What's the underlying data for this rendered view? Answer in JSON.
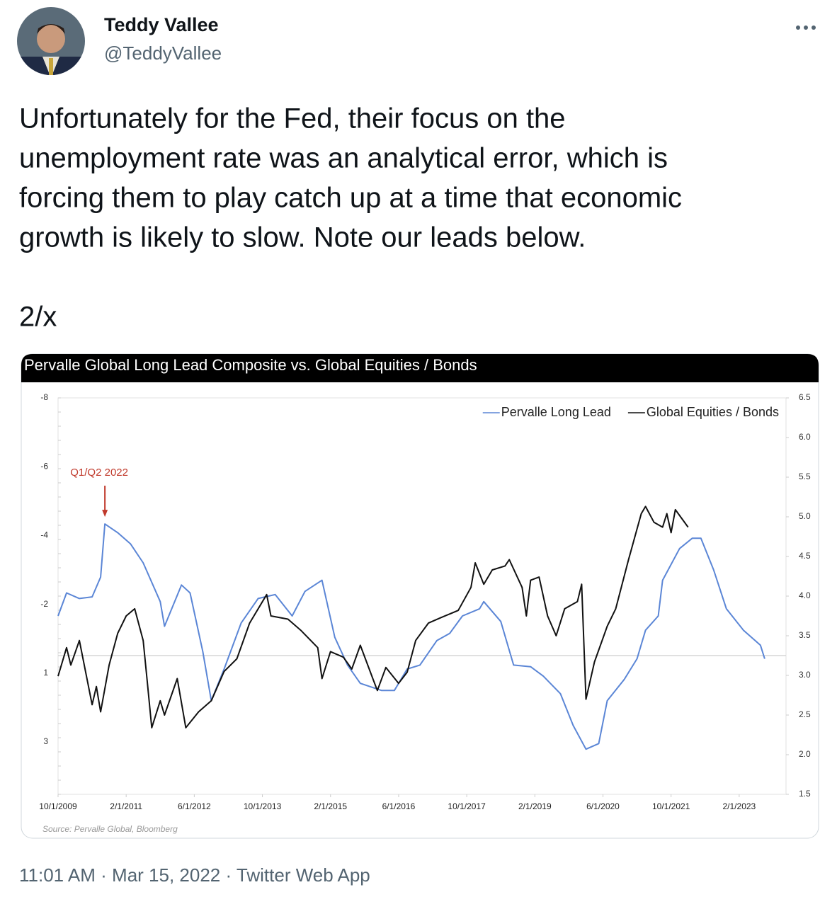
{
  "tweet": {
    "name": "Teddy Vallee",
    "handle": "@TeddyVallee",
    "text_lines": [
      "Unfortunately for the Fed, their focus on the",
      "unemployment rate was an analytical error, which is",
      "forcing them to play catch up at a time that economic",
      "growth is likely to slow. Note our leads below."
    ],
    "thread_marker": "2/x",
    "time": "11:01 AM",
    "date": "Mar 15, 2022",
    "source": "Twitter Web App"
  },
  "chart_data": {
    "type": "line",
    "title": "Pervalle Global Long Lead Composite vs. Global Equities / Bonds",
    "source_note": "Source: Pervalle Global, Bloomberg",
    "annotation": "Q1/Q2 2022",
    "legend": "upper right",
    "xlim": [
      "10/1/2009",
      "1/1/2024"
    ],
    "xticks": [
      "10/1/2009",
      "2/1/2011",
      "6/1/2012",
      "10/1/2013",
      "2/1/2015",
      "6/1/2016",
      "10/1/2017",
      "2/1/2019",
      "6/1/2020",
      "10/1/2021",
      "2/1/2023"
    ],
    "ylim": [
      1.5,
      6.5
    ],
    "yticks": [
      1.5,
      {
        "value": 2,
        "label": "2.0"
      },
      2.5,
      {
        "value": 3,
        "label": "3.0"
      },
      3.5,
      {
        "value": 4,
        "label": "4.0"
      },
      4.5,
      {
        "value": 5,
        "label": "5.0"
      },
      5.5,
      {
        "value": 6,
        "label": "6.0"
      },
      6.5
    ],
    "y_left_labels": [
      "-8",
      "-6",
      "-4",
      "-2",
      "1",
      "3"
    ],
    "series": [
      {
        "name": "Pervalle Long Lead",
        "color": "#5b86d6",
        "x": [
          "10/1/2009",
          "12/1/2009",
          "3/1/2010",
          "6/1/2010",
          "8/1/2010",
          "9/1/2010",
          "12/1/2010",
          "3/1/2011",
          "6/1/2011",
          "10/1/2011",
          "11/1/2011",
          "3/1/2012",
          "5/1/2012",
          "8/1/2012",
          "10/1/2012",
          "1/1/2013",
          "5/1/2013",
          "9/1/2013",
          "1/1/2014",
          "5/1/2014",
          "8/1/2014",
          "12/1/2014",
          "3/1/2015",
          "6/1/2015",
          "9/1/2015",
          "2/1/2016",
          "5/1/2016",
          "8/1/2016",
          "11/1/2016",
          "3/1/2017",
          "6/1/2017",
          "9/1/2017",
          "1/1/2018",
          "2/1/2018",
          "6/1/2018",
          "9/1/2018",
          "1/1/2019",
          "4/1/2019",
          "8/1/2019",
          "11/1/2019",
          "2/1/2020",
          "5/1/2020",
          "7/1/2020",
          "11/1/2020",
          "2/1/2021",
          "4/1/2021",
          "7/1/2021",
          "8/1/2021",
          "12/1/2021",
          "3/1/2022",
          "5/1/2022",
          "8/1/2022",
          "11/1/2022",
          "3/1/2023",
          "7/1/2023",
          "8/1/2023"
        ],
        "values": [
          3.75,
          4.04,
          3.97,
          3.99,
          4.24,
          4.91,
          4.8,
          4.66,
          4.42,
          3.93,
          3.62,
          4.14,
          4.04,
          3.3,
          2.68,
          3.08,
          3.66,
          3.97,
          4.02,
          3.75,
          4.06,
          4.2,
          3.48,
          3.13,
          2.9,
          2.81,
          2.81,
          3.08,
          3.13,
          3.44,
          3.53,
          3.75,
          3.84,
          3.93,
          3.68,
          3.13,
          3.11,
          2.99,
          2.77,
          2.37,
          2.07,
          2.14,
          2.68,
          2.95,
          3.21,
          3.57,
          3.75,
          4.2,
          4.6,
          4.73,
          4.73,
          4.33,
          3.84,
          3.57,
          3.38,
          3.21
        ]
      },
      {
        "name": "Global Equities / Bonds",
        "color": "#111111",
        "x": [
          "10/1/2009",
          "12/1/2009",
          "1/1/2010",
          "3/1/2010",
          "5/1/2010",
          "6/1/2010",
          "7/1/2010",
          "8/1/2010",
          "10/1/2010",
          "12/1/2010",
          "2/1/2011",
          "4/1/2011",
          "6/1/2011",
          "7/1/2011",
          "8/1/2011",
          "10/1/2011",
          "11/1/2011",
          "2/1/2012",
          "4/1/2012",
          "7/1/2012",
          "10/1/2012",
          "1/1/2013",
          "4/1/2013",
          "7/1/2013",
          "11/1/2013",
          "12/1/2013",
          "4/1/2014",
          "7/1/2014",
          "11/1/2014",
          "12/1/2014",
          "2/1/2015",
          "5/1/2015",
          "7/1/2015",
          "9/1/2015",
          "12/1/2015",
          "1/1/2016",
          "3/1/2016",
          "6/1/2016",
          "8/1/2016",
          "10/1/2016",
          "1/1/2017",
          "4/1/2017",
          "8/1/2017",
          "11/1/2017",
          "12/1/2017",
          "2/1/2018",
          "4/1/2018",
          "7/1/2018",
          "8/1/2018",
          "11/1/2018",
          "12/1/2018",
          "1/1/2019",
          "3/1/2019",
          "5/1/2019",
          "7/1/2019",
          "9/1/2019",
          "12/1/2019",
          "1/1/2020",
          "2/1/2020",
          "4/1/2020",
          "7/1/2020",
          "9/1/2020",
          "12/1/2020",
          "3/1/2021",
          "4/1/2021",
          "6/1/2021",
          "8/1/2021",
          "9/1/2021",
          "10/1/2021",
          "11/1/2021",
          "2/1/2022"
        ],
        "values": [
          2.99,
          3.35,
          3.13,
          3.44,
          2.9,
          2.63,
          2.86,
          2.54,
          3.13,
          3.53,
          3.75,
          3.84,
          3.44,
          2.9,
          2.34,
          2.68,
          2.5,
          2.96,
          2.34,
          2.54,
          2.68,
          3.05,
          3.21,
          3.66,
          4.02,
          3.75,
          3.71,
          3.57,
          3.35,
          2.96,
          3.3,
          3.23,
          3.08,
          3.38,
          2.95,
          2.81,
          3.1,
          2.9,
          3.04,
          3.44,
          3.66,
          3.73,
          3.82,
          4.11,
          4.42,
          4.15,
          4.33,
          4.38,
          4.46,
          4.11,
          3.75,
          4.2,
          4.24,
          3.75,
          3.5,
          3.84,
          3.93,
          4.15,
          2.7,
          3.17,
          3.62,
          3.84,
          4.46,
          5.04,
          5.13,
          4.93,
          4.87,
          5.04,
          4.8,
          5.09,
          4.87
        ]
      }
    ]
  }
}
